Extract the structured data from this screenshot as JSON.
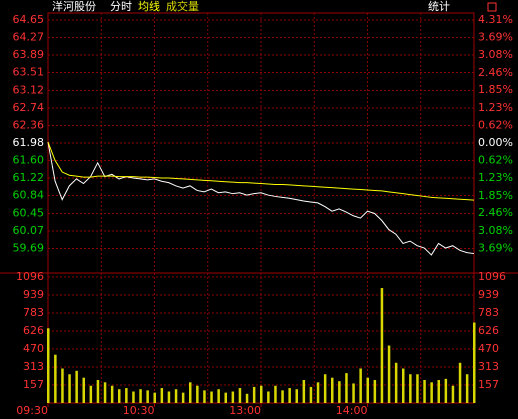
{
  "header": {
    "name": "洋河股份",
    "mode": "分时",
    "stats": "统计"
  },
  "chart_data": [
    {
      "type": "line",
      "x": [
        "09:30",
        "09:34",
        "09:38",
        "09:42",
        "09:46",
        "09:50",
        "09:54",
        "09:58",
        "10:02",
        "10:06",
        "10:10",
        "10:14",
        "10:18",
        "10:22",
        "10:26",
        "10:30",
        "10:34",
        "10:38",
        "10:42",
        "10:46",
        "10:50",
        "10:54",
        "10:58",
        "11:02",
        "11:06",
        "11:10",
        "11:14",
        "11:18",
        "11:22",
        "11:26",
        "11:30",
        "13:04",
        "13:08",
        "13:12",
        "13:16",
        "13:20",
        "13:24",
        "13:28",
        "13:32",
        "13:36",
        "13:40",
        "13:44",
        "13:48",
        "13:52",
        "13:56",
        "14:00",
        "14:04",
        "14:08",
        "14:12",
        "14:16",
        "14:20",
        "14:24",
        "14:28",
        "14:32",
        "14:36",
        "14:40",
        "14:44",
        "14:48",
        "14:52",
        "14:56",
        "15:00"
      ],
      "series": [
        {
          "color": "#ffffff",
          "values": [
            62.0,
            61.15,
            60.75,
            61.05,
            61.2,
            61.1,
            61.25,
            61.55,
            61.25,
            61.3,
            61.2,
            61.25,
            61.22,
            61.2,
            61.18,
            61.2,
            61.15,
            61.12,
            61.05,
            61.0,
            61.05,
            60.95,
            60.92,
            60.98,
            60.9,
            60.92,
            60.88,
            60.9,
            60.85,
            60.88,
            60.9,
            60.85,
            60.82,
            60.8,
            60.78,
            60.75,
            60.72,
            60.7,
            60.68,
            60.6,
            60.5,
            60.55,
            60.48,
            60.4,
            60.35,
            60.5,
            60.45,
            60.3,
            60.1,
            60.0,
            59.8,
            59.85,
            59.75,
            59.7,
            59.55,
            59.8,
            59.7,
            59.75,
            59.65,
            59.6,
            59.58
          ]
        },
        {
          "name": "均线",
          "color": "#ffff00",
          "values": [
            62.0,
            61.6,
            61.35,
            61.28,
            61.26,
            61.24,
            61.24,
            61.26,
            61.26,
            61.26,
            61.25,
            61.25,
            61.25,
            61.24,
            61.24,
            61.23,
            61.22,
            61.22,
            61.21,
            61.2,
            61.19,
            61.18,
            61.17,
            61.16,
            61.15,
            61.14,
            61.13,
            61.12,
            61.12,
            61.11,
            61.1,
            61.09,
            61.08,
            61.08,
            61.07,
            61.06,
            61.05,
            61.04,
            61.03,
            61.02,
            61.01,
            61.0,
            60.99,
            60.98,
            60.97,
            60.96,
            60.95,
            60.94,
            60.92,
            60.9,
            60.88,
            60.86,
            60.84,
            60.82,
            60.8,
            60.79,
            60.78,
            60.77,
            60.76,
            60.75,
            60.74
          ]
        }
      ],
      "ylim": [
        59.31,
        64.65
      ],
      "yticks": [
        64.65,
        64.27,
        63.89,
        63.51,
        63.12,
        62.74,
        62.36,
        61.98,
        {
          "value": 61.6,
          "label": "61.60"
        },
        61.22,
        60.84,
        60.45,
        60.07,
        59.69
      ],
      "y2lim": [
        -4.31,
        4.31
      ],
      "y2ticks": [
        {
          "value": 4.31,
          "label": "4.31%"
        },
        {
          "value": 3.69,
          "label": "3.69%"
        },
        {
          "value": 3.08,
          "label": "3.08%"
        },
        {
          "value": 2.46,
          "label": "2.46%"
        },
        {
          "value": 1.85,
          "label": "1.85%"
        },
        {
          "value": 1.23,
          "label": "1.23%"
        },
        {
          "value": 0.62,
          "label": "0.62%"
        },
        {
          "value": 0,
          "label": "0.00%"
        },
        {
          "value": -0.62,
          "label": "0.62%"
        },
        {
          "value": -1.23,
          "label": "1.23%"
        },
        {
          "value": -1.85,
          "label": "1.85%"
        },
        {
          "value": -2.46,
          "label": "2.46%"
        },
        {
          "value": -3.08,
          "label": "3.08%"
        },
        {
          "value": -3.69,
          "label": "3.69%"
        }
      ],
      "up_color": "#ff3232",
      "down_color": "#00d200",
      "flat_color": "#ffffff",
      "grid": true
    },
    {
      "type": "bar",
      "title": "成交量",
      "color": "#d8d800",
      "label_color": "#ff3232",
      "values": [
        650,
        420,
        300,
        250,
        280,
        220,
        150,
        200,
        180,
        150,
        120,
        130,
        100,
        120,
        110,
        90,
        130,
        100,
        120,
        90,
        180,
        150,
        110,
        100,
        120,
        90,
        100,
        130,
        80,
        140,
        150,
        100,
        150,
        110,
        130,
        120,
        200,
        140,
        180,
        250,
        220,
        190,
        260,
        170,
        300,
        220,
        200,
        1000,
        500,
        350,
        300,
        250,
        250,
        200,
        180,
        200,
        210,
        150,
        350,
        250,
        700
      ],
      "ylim": [
        0,
        1096
      ],
      "yticks": [
        1096,
        939,
        783,
        626,
        470,
        313,
        157
      ],
      "xticks": [
        "09:30",
        "10:30",
        "13:00",
        "14:00"
      ],
      "grid": true
    }
  ]
}
